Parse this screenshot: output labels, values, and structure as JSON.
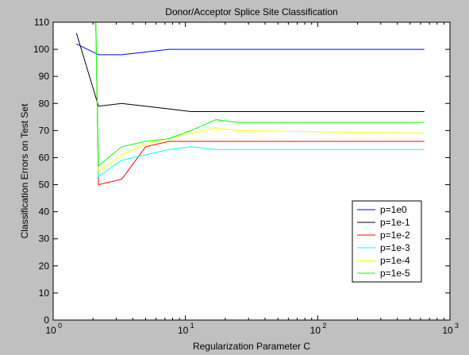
{
  "chart_data": {
    "type": "line",
    "title": "Donor/Acceptor Splice Site Classification",
    "xlabel": "Regularization Parameter C",
    "ylabel": "Classification Errors on Test Set",
    "xscale": "log",
    "xlim": [
      1,
      1000
    ],
    "ylim": [
      0,
      110
    ],
    "xticks": [
      1,
      10,
      100,
      1000
    ],
    "xtick_labels": [
      {
        "base": "10",
        "exp": "0"
      },
      {
        "base": "10",
        "exp": "1"
      },
      {
        "base": "10",
        "exp": "2"
      },
      {
        "base": "10",
        "exp": "3"
      }
    ],
    "yticks": [
      0,
      10,
      20,
      30,
      40,
      50,
      60,
      70,
      80,
      90,
      100,
      110
    ],
    "grid": false,
    "legend_position": "lower-right",
    "series": [
      {
        "name": "p=1e0",
        "color": "#0000ff",
        "x": [
          1.5,
          2.2,
          3.3,
          5,
          7.5,
          11,
          17,
          25,
          640
        ],
        "y": [
          102,
          98,
          98,
          99,
          100,
          100,
          100,
          100,
          100
        ]
      },
      {
        "name": "p=1e-1",
        "color": "#000000",
        "x": [
          1.5,
          2.2,
          3.3,
          5,
          7.5,
          11,
          17,
          25,
          640
        ],
        "y": [
          106,
          79,
          80,
          79,
          78,
          77,
          77,
          77,
          77
        ]
      },
      {
        "name": "p=1e-2",
        "color": "#ff0000",
        "x": [
          2.1,
          2.2,
          3.3,
          5,
          7.5,
          11,
          17,
          25,
          640
        ],
        "y": [
          110,
          50,
          52,
          64,
          66,
          66,
          66,
          66,
          66
        ]
      },
      {
        "name": "p=1e-3",
        "color": "#00ffff",
        "x": [
          2.1,
          2.2,
          3.3,
          5,
          7.5,
          11,
          17,
          25,
          640
        ],
        "y": [
          110,
          53,
          59,
          61,
          63,
          64,
          63,
          63,
          63
        ]
      },
      {
        "name": "p=1e-4",
        "color": "#ffff00",
        "x": [
          2.1,
          2.2,
          3.3,
          5,
          7.5,
          11,
          17,
          25,
          640
        ],
        "y": [
          110,
          55,
          61,
          65,
          67,
          69,
          71,
          70,
          69
        ]
      },
      {
        "name": "p=1e-5",
        "color": "#00ff00",
        "x": [
          2.1,
          2.2,
          3.3,
          5,
          7.5,
          11,
          17,
          25,
          640
        ],
        "y": [
          110,
          57,
          64,
          66,
          67,
          70,
          74,
          73,
          73
        ]
      }
    ]
  }
}
